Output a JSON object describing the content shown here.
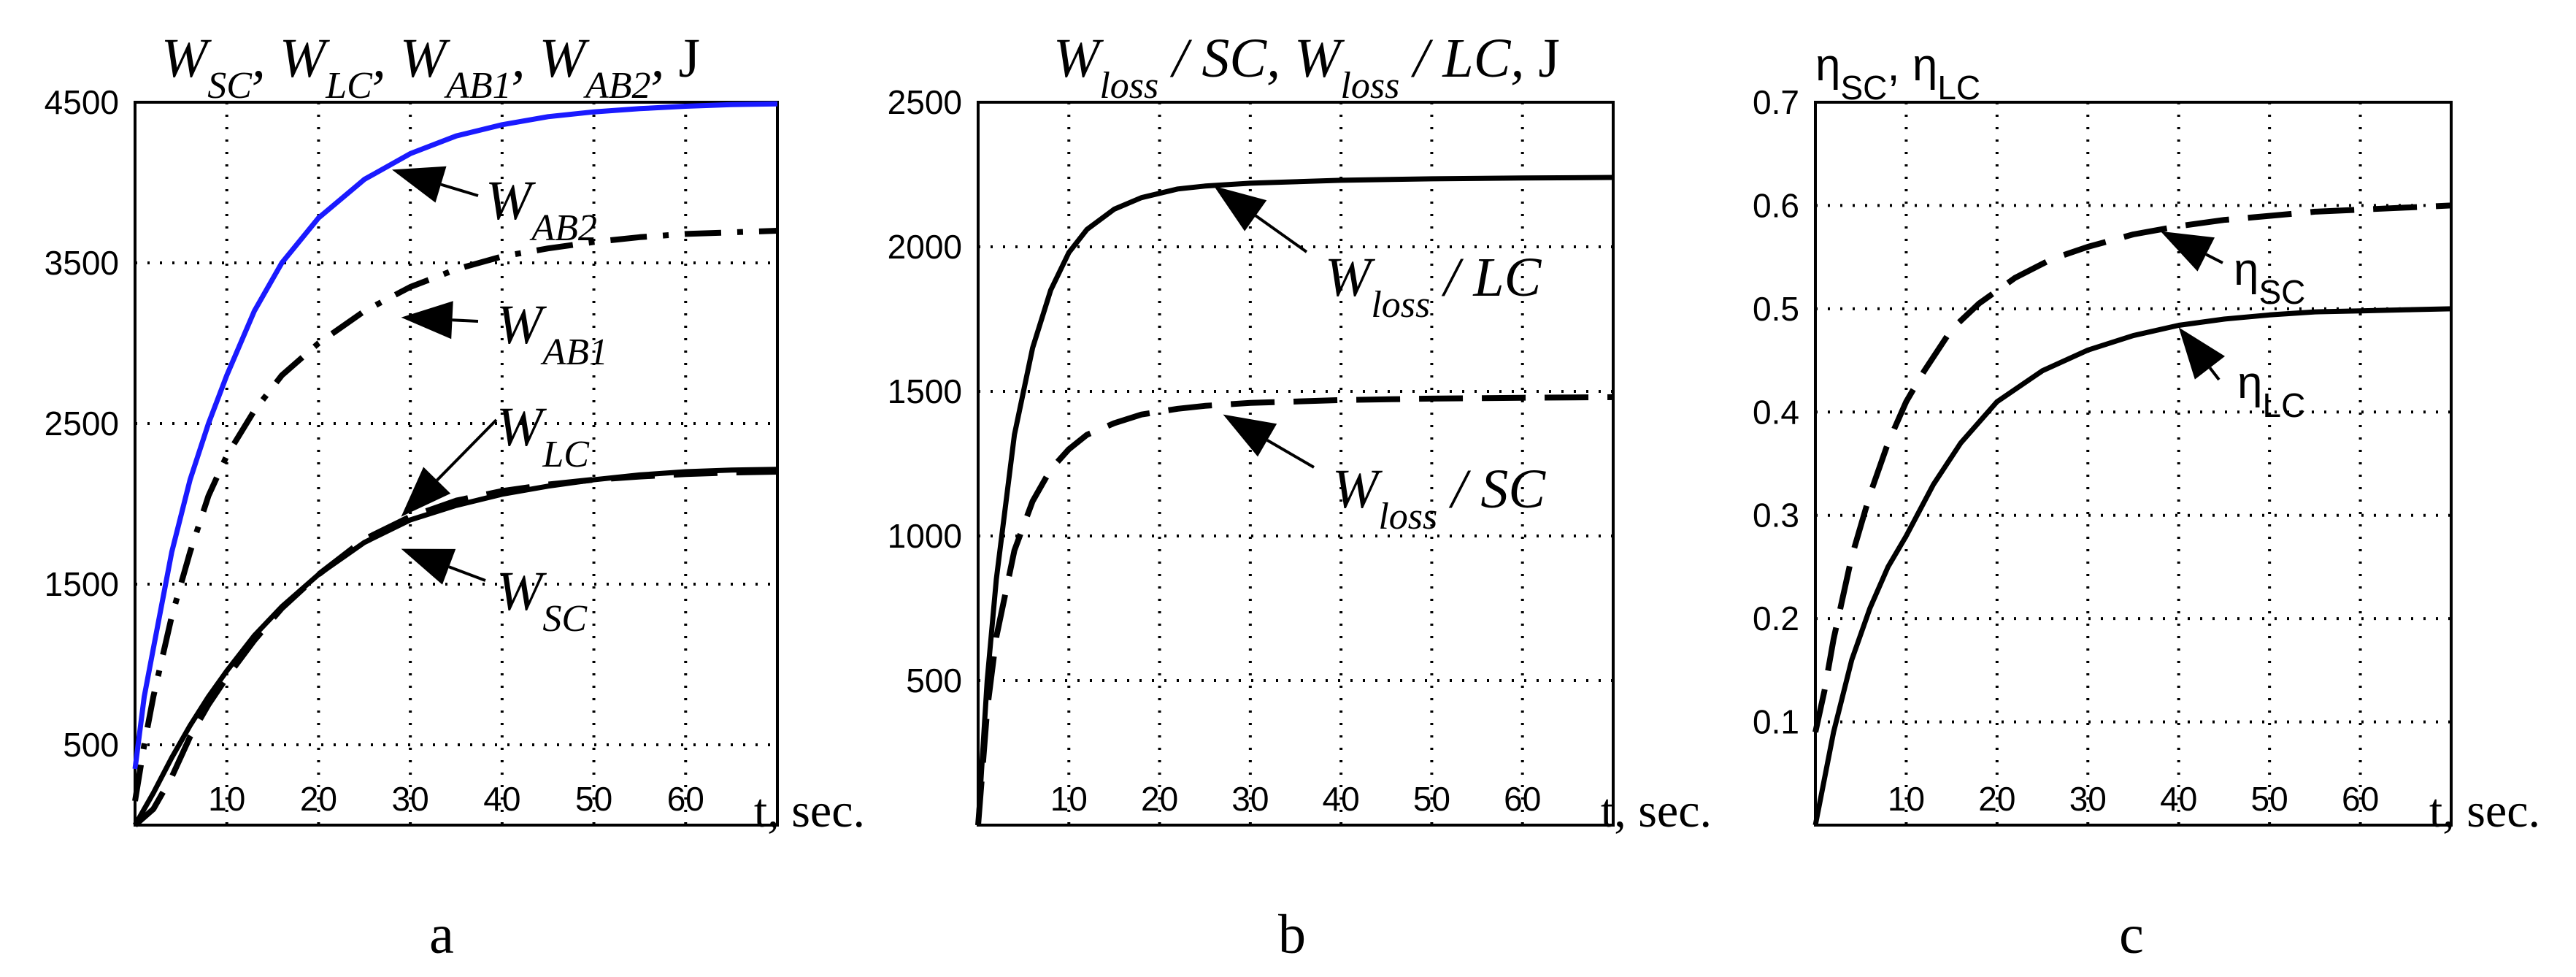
{
  "chart_data": [
    {
      "type": "line",
      "panel_label": "a",
      "title": "W_SC, W_LC, W_AB1, W_AB2, J",
      "title_parts": [
        "W",
        "SC",
        ", ",
        "W",
        "LC",
        ", ",
        "W",
        "AB1",
        ", ",
        "W",
        "AB2",
        ", ",
        "J"
      ],
      "xlabel": "t, sec.",
      "xlim": [
        0,
        70
      ],
      "ylim": [
        0,
        4500
      ],
      "xticks": [
        10,
        20,
        30,
        40,
        50,
        60
      ],
      "yticks": [
        500,
        1500,
        2500,
        3500,
        4500
      ],
      "grid": true,
      "series": [
        {
          "name": "W_AB2",
          "label_main": "W",
          "label_sub": "AB2",
          "style": "solid",
          "color": "#1a1aff",
          "x": [
            0,
            1,
            2,
            4,
            6,
            8,
            10,
            13,
            16,
            20,
            25,
            30,
            35,
            40,
            45,
            50,
            55,
            60,
            65,
            70
          ],
          "y": [
            350,
            800,
            1100,
            1700,
            2150,
            2500,
            2800,
            3200,
            3500,
            3780,
            4020,
            4180,
            4290,
            4360,
            4410,
            4440,
            4460,
            4475,
            4485,
            4490
          ]
        },
        {
          "name": "W_AB1",
          "label_main": "W",
          "label_sub": "AB1",
          "style": "dashdot",
          "color": "#000000",
          "x": [
            0,
            1,
            2,
            4,
            6,
            8,
            10,
            13,
            16,
            20,
            25,
            30,
            35,
            40,
            45,
            50,
            55,
            60,
            65,
            70
          ],
          "y": [
            150,
            500,
            800,
            1300,
            1700,
            2050,
            2300,
            2580,
            2800,
            3000,
            3200,
            3350,
            3460,
            3540,
            3590,
            3630,
            3660,
            3680,
            3690,
            3700
          ]
        },
        {
          "name": "W_LC",
          "label_main": "W",
          "label_sub": "LC",
          "style": "dashed",
          "color": "#000000",
          "x": [
            0,
            2,
            4,
            6,
            8,
            10,
            13,
            16,
            20,
            25,
            30,
            35,
            40,
            45,
            50,
            55,
            60,
            65,
            70
          ],
          "y": [
            0,
            100,
            300,
            550,
            750,
            920,
            1150,
            1350,
            1560,
            1780,
            1920,
            2020,
            2080,
            2120,
            2150,
            2170,
            2185,
            2195,
            2200
          ]
        },
        {
          "name": "W_SC",
          "label_main": "W",
          "label_sub": "SC",
          "style": "solid",
          "color": "#000000",
          "x": [
            0,
            2,
            4,
            6,
            8,
            10,
            13,
            16,
            20,
            25,
            30,
            35,
            40,
            45,
            50,
            55,
            60,
            65,
            70
          ],
          "y": [
            0,
            200,
            420,
            620,
            800,
            960,
            1180,
            1360,
            1560,
            1760,
            1900,
            1990,
            2060,
            2110,
            2150,
            2180,
            2200,
            2210,
            2215
          ]
        }
      ],
      "annotations": [
        {
          "series": "W_AB2",
          "text_main": "W",
          "text_sub": "AB2",
          "point": [
            28,
            4080
          ]
        },
        {
          "series": "W_AB1",
          "text_main": "W",
          "text_sub": "AB1",
          "point": [
            29,
            3160
          ]
        },
        {
          "series": "W_LC",
          "text_main": "W",
          "text_sub": "LC",
          "point": [
            29,
            1920
          ]
        },
        {
          "series": "W_SC",
          "text_main": "W",
          "text_sub": "SC",
          "point": [
            29,
            1720
          ]
        }
      ]
    },
    {
      "type": "line",
      "panel_label": "b",
      "title": "W_loss / SC, W_loss / LC, J",
      "title_parts": [
        "W",
        "loss",
        " / SC, ",
        "W",
        "loss",
        " / LC, ",
        "J"
      ],
      "xlabel": "t, sec.",
      "xlim": [
        0,
        70
      ],
      "ylim": [
        0,
        2500
      ],
      "xticks": [
        10,
        20,
        30,
        40,
        50,
        60
      ],
      "yticks": [
        500,
        1000,
        1500,
        2000,
        2500
      ],
      "grid": true,
      "series": [
        {
          "name": "W_loss / LC",
          "label_main": "W",
          "label_sub": "loss",
          "label_tail": " / LC",
          "style": "solid",
          "color": "#000000",
          "x": [
            0,
            1,
            2,
            4,
            6,
            8,
            10,
            12,
            15,
            18,
            22,
            25,
            30,
            40,
            50,
            60,
            70
          ],
          "y": [
            0,
            500,
            850,
            1350,
            1650,
            1850,
            1980,
            2060,
            2130,
            2170,
            2200,
            2210,
            2220,
            2230,
            2235,
            2238,
            2240
          ]
        },
        {
          "name": "W_loss / SC",
          "label_main": "W",
          "label_sub": "loss",
          "label_tail": " / SC",
          "style": "dashed",
          "color": "#000000",
          "x": [
            0,
            1,
            2,
            4,
            6,
            8,
            10,
            12,
            15,
            18,
            22,
            25,
            30,
            40,
            50,
            60,
            70
          ],
          "y": [
            0,
            400,
            650,
            950,
            1120,
            1230,
            1300,
            1350,
            1390,
            1420,
            1440,
            1450,
            1460,
            1470,
            1475,
            1478,
            1480
          ]
        }
      ],
      "annotations": [
        {
          "series": "W_loss / LC",
          "text_main": "W",
          "text_sub": "loss",
          "text_tail": " / LC",
          "point": [
            26,
            2210
          ]
        },
        {
          "series": "W_loss / SC",
          "text_main": "W",
          "text_sub": "loss",
          "text_tail": " / SC",
          "point": [
            27,
            1420
          ]
        }
      ]
    },
    {
      "type": "line",
      "panel_label": "c",
      "title": "ηSC, ηLC",
      "title_parts": [
        "η",
        "SC",
        ", ",
        "η",
        "LC"
      ],
      "xlabel": "t, sec.",
      "xlim": [
        0,
        70
      ],
      "ylim": [
        0,
        0.7
      ],
      "xticks": [
        10,
        20,
        30,
        40,
        50,
        60
      ],
      "yticks": [
        0.1,
        0.2,
        0.3,
        0.4,
        0.5,
        0.6,
        0.7
      ],
      "grid": true,
      "series": [
        {
          "name": "ηSC",
          "label_main": "η",
          "label_sub": "SC",
          "style": "dashed",
          "color": "#000000",
          "x": [
            0,
            1,
            2,
            4,
            6,
            8,
            10,
            12,
            15,
            18,
            22,
            26,
            30,
            35,
            40,
            45,
            50,
            55,
            60,
            65,
            70
          ],
          "y": [
            0.09,
            0.13,
            0.18,
            0.26,
            0.32,
            0.37,
            0.41,
            0.44,
            0.48,
            0.505,
            0.53,
            0.548,
            0.56,
            0.572,
            0.58,
            0.586,
            0.59,
            0.594,
            0.596,
            0.598,
            0.6
          ]
        },
        {
          "name": "ηLC",
          "label_main": "η",
          "label_sub": "LC",
          "style": "solid",
          "color": "#000000",
          "x": [
            0,
            2,
            4,
            6,
            8,
            10,
            13,
            16,
            20,
            25,
            30,
            35,
            40,
            45,
            50,
            55,
            60,
            65,
            70
          ],
          "y": [
            0.0,
            0.09,
            0.16,
            0.21,
            0.25,
            0.28,
            0.33,
            0.37,
            0.41,
            0.44,
            0.46,
            0.474,
            0.484,
            0.49,
            0.494,
            0.497,
            0.498,
            0.499,
            0.5
          ]
        }
      ],
      "annotations": [
        {
          "series": "ηSC",
          "text_main": "η",
          "text_sub": "SC",
          "point": [
            38,
            0.575
          ]
        },
        {
          "series": "ηLC",
          "text_main": "η",
          "text_sub": "LC",
          "point": [
            40,
            0.482
          ]
        }
      ]
    }
  ]
}
